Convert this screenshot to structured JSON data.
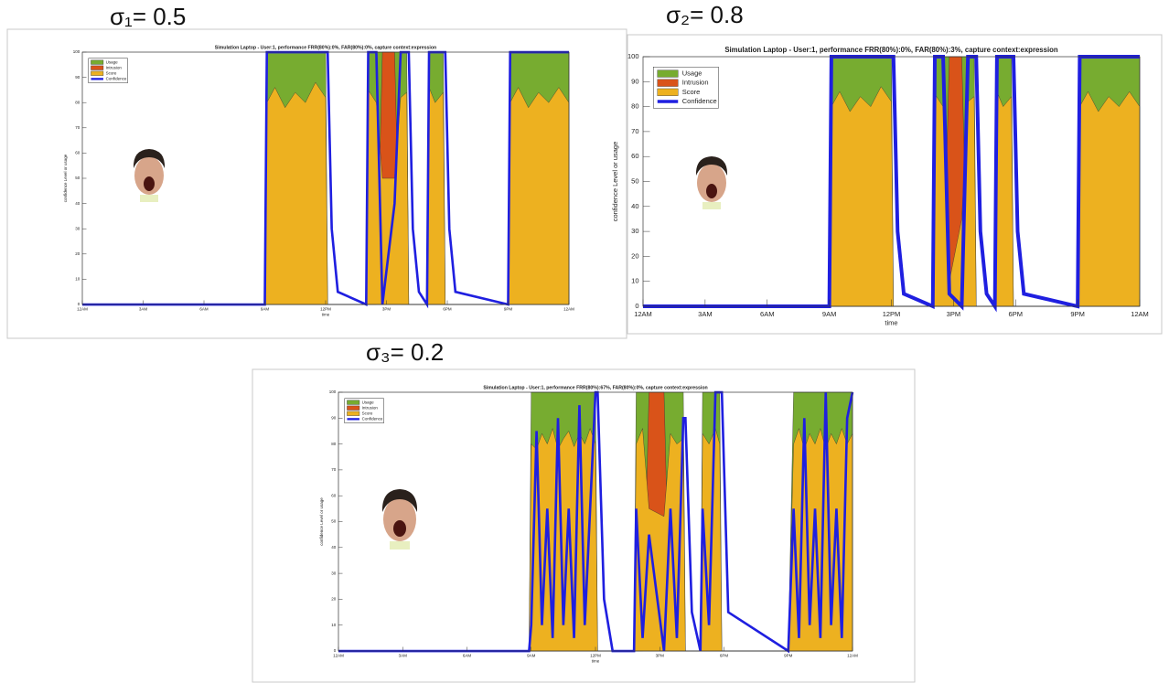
{
  "chart_data": [
    {
      "type": "area",
      "panel_label": "σ₁= 0.5",
      "title": "Simulation Laptop - User:1, performance FRR(80%):0%, FAR(80%):0%, capture context:expression",
      "xlabel": "time",
      "ylabel": "confidence Level or usage",
      "legend": "upper left",
      "xlim": [
        0,
        24
      ],
      "ylim": [
        0,
        100
      ],
      "xticks": [
        {
          "value": 0,
          "label": "12AM"
        },
        {
          "value": 3,
          "label": "3AM"
        },
        {
          "value": 6,
          "label": "6AM"
        },
        {
          "value": 9,
          "label": "9AM"
        },
        {
          "value": 12,
          "label": "12PM"
        },
        {
          "value": 15,
          "label": "3PM"
        },
        {
          "value": 18,
          "label": "6PM"
        },
        {
          "value": 21,
          "label": "9PM"
        },
        {
          "value": 24,
          "label": "12AM"
        }
      ],
      "yticks": [
        0,
        10,
        20,
        30,
        40,
        50,
        60,
        70,
        80,
        90,
        100
      ],
      "x": [
        0,
        9,
        9.1,
        9.5,
        10,
        10.5,
        11,
        11.5,
        12,
        12.1,
        12.3,
        12.6,
        14,
        14.1,
        14.5,
        14.8,
        15.4,
        15.7,
        16,
        16.1,
        16.3,
        16.6,
        17,
        17.1,
        17.4,
        17.8,
        17.9,
        18.1,
        18.4,
        21,
        21.1,
        21.5,
        22,
        22.5,
        23,
        23.5,
        24
      ],
      "series": [
        {
          "name": "Usage",
          "color": "#77ac30",
          "style": "area",
          "values": [
            0,
            0,
            100,
            100,
            100,
            100,
            100,
            100,
            100,
            0,
            0,
            0,
            0,
            100,
            100,
            100,
            100,
            100,
            100,
            0,
            0,
            0,
            0,
            100,
            100,
            100,
            0,
            0,
            0,
            0,
            100,
            100,
            100,
            100,
            100,
            100,
            100
          ]
        },
        {
          "name": "Intrusion",
          "color": "#d95319",
          "style": "area",
          "values": [
            0,
            0,
            0,
            0,
            0,
            0,
            0,
            0,
            0,
            0,
            0,
            0,
            0,
            0,
            0,
            100,
            100,
            0,
            0,
            0,
            0,
            0,
            0,
            0,
            0,
            0,
            0,
            0,
            0,
            0,
            0,
            0,
            0,
            0,
            0,
            0,
            0
          ]
        },
        {
          "name": "Score",
          "color": "#edb120",
          "style": "area",
          "values": [
            0,
            0,
            80,
            86,
            78,
            84,
            80,
            88,
            82,
            0,
            0,
            0,
            0,
            85,
            80,
            50,
            50,
            82,
            84,
            0,
            0,
            0,
            0,
            86,
            80,
            84,
            0,
            0,
            0,
            0,
            80,
            86,
            78,
            84,
            80,
            86,
            80
          ]
        },
        {
          "name": "Confidence",
          "color": "#1f1fe0",
          "style": "line",
          "values": [
            0,
            0,
            100,
            100,
            100,
            100,
            100,
            100,
            100,
            100,
            30,
            5,
            0,
            100,
            100,
            0,
            40,
            100,
            100,
            100,
            30,
            5,
            0,
            100,
            100,
            100,
            100,
            30,
            5,
            0,
            100,
            100,
            100,
            100,
            100,
            100,
            100
          ]
        }
      ]
    },
    {
      "type": "area",
      "panel_label": "σ₂= 0.8",
      "title": "Simulation Laptop - User:1, performance FRR(80%):0%, FAR(80%):3%, capture context:expression",
      "xlabel": "time",
      "ylabel": "confidence Level or usage",
      "legend": "upper left",
      "xlim": [
        0,
        24
      ],
      "ylim": [
        0,
        100
      ],
      "xticks": [
        {
          "value": 0,
          "label": "12AM"
        },
        {
          "value": 3,
          "label": "3AM"
        },
        {
          "value": 6,
          "label": "6AM"
        },
        {
          "value": 9,
          "label": "9AM"
        },
        {
          "value": 12,
          "label": "12PM"
        },
        {
          "value": 15,
          "label": "3PM"
        },
        {
          "value": 18,
          "label": "6PM"
        },
        {
          "value": 21,
          "label": "9PM"
        },
        {
          "value": 24,
          "label": "12AM"
        }
      ],
      "yticks": [
        0,
        10,
        20,
        30,
        40,
        50,
        60,
        70,
        80,
        90,
        100
      ],
      "x": [
        0,
        9,
        9.1,
        9.5,
        10,
        10.5,
        11,
        11.5,
        12,
        12.1,
        12.3,
        12.6,
        14,
        14.1,
        14.5,
        14.8,
        15.4,
        15.7,
        16,
        16.1,
        16.3,
        16.6,
        17,
        17.1,
        17.4,
        17.8,
        17.9,
        18.1,
        18.4,
        21,
        21.1,
        21.5,
        22,
        22.5,
        23,
        23.5,
        24
      ],
      "series": [
        {
          "name": "Usage",
          "color": "#77ac30",
          "style": "area",
          "values": [
            0,
            0,
            100,
            100,
            100,
            100,
            100,
            100,
            100,
            0,
            0,
            0,
            0,
            100,
            100,
            100,
            100,
            100,
            100,
            0,
            0,
            0,
            0,
            100,
            100,
            100,
            0,
            0,
            0,
            0,
            100,
            100,
            100,
            100,
            100,
            100,
            100
          ]
        },
        {
          "name": "Intrusion",
          "color": "#d95319",
          "style": "area",
          "values": [
            0,
            0,
            0,
            0,
            0,
            0,
            0,
            0,
            0,
            0,
            0,
            0,
            0,
            0,
            0,
            100,
            100,
            0,
            0,
            0,
            0,
            0,
            0,
            0,
            0,
            0,
            0,
            0,
            0,
            0,
            0,
            0,
            0,
            0,
            0,
            0,
            0
          ]
        },
        {
          "name": "Score",
          "color": "#edb120",
          "style": "area",
          "values": [
            0,
            0,
            80,
            86,
            78,
            84,
            80,
            88,
            82,
            0,
            0,
            0,
            0,
            85,
            80,
            10,
            35,
            82,
            84,
            0,
            0,
            0,
            0,
            86,
            80,
            84,
            0,
            0,
            0,
            0,
            80,
            86,
            78,
            84,
            80,
            86,
            80
          ]
        },
        {
          "name": "Confidence",
          "color": "#1f1fe0",
          "style": "line",
          "values": [
            0,
            0,
            100,
            100,
            100,
            100,
            100,
            100,
            100,
            100,
            30,
            5,
            0,
            100,
            100,
            5,
            0,
            100,
            100,
            100,
            30,
            5,
            0,
            100,
            100,
            100,
            100,
            30,
            5,
            0,
            100,
            100,
            100,
            100,
            100,
            100,
            100
          ]
        }
      ]
    },
    {
      "type": "area",
      "panel_label": "σ₃= 0.2",
      "title": "Simulation Laptop - User:1, performance FRR(80%):67%, FAR(80%):0%, capture context:expression",
      "xlabel": "time",
      "ylabel": "confidence Level or usage",
      "legend": "upper left",
      "xlim": [
        0,
        24
      ],
      "ylim": [
        0,
        100
      ],
      "xticks": [
        {
          "value": 0,
          "label": "12AM"
        },
        {
          "value": 3,
          "label": "3AM"
        },
        {
          "value": 6,
          "label": "6AM"
        },
        {
          "value": 9,
          "label": "9AM"
        },
        {
          "value": 12,
          "label": "12PM"
        },
        {
          "value": 15,
          "label": "3PM"
        },
        {
          "value": 18,
          "label": "6PM"
        },
        {
          "value": 21,
          "label": "9PM"
        },
        {
          "value": 24,
          "label": "12AM"
        }
      ],
      "yticks": [
        0,
        10,
        20,
        30,
        40,
        50,
        60,
        70,
        80,
        90,
        100
      ],
      "x": [
        0,
        8.9,
        9,
        9.25,
        9.5,
        9.75,
        10,
        10.25,
        10.5,
        10.75,
        11,
        11.25,
        11.5,
        11.75,
        12,
        12.1,
        12.4,
        12.8,
        13.8,
        13.9,
        14.2,
        14.5,
        15.2,
        15.5,
        15.8,
        16.1,
        16.2,
        16.5,
        16.9,
        17,
        17.3,
        17.6,
        17.8,
        17.9,
        18.2,
        21,
        21.25,
        21.5,
        21.75,
        22,
        22.25,
        22.5,
        22.75,
        23,
        23.25,
        23.5,
        23.75,
        24
      ],
      "series": [
        {
          "name": "Usage",
          "color": "#77ac30",
          "style": "area",
          "values": [
            0,
            0,
            100,
            100,
            100,
            100,
            100,
            100,
            100,
            100,
            100,
            100,
            100,
            100,
            100,
            0,
            0,
            0,
            0,
            100,
            100,
            100,
            100,
            100,
            100,
            100,
            0,
            0,
            0,
            100,
            100,
            100,
            100,
            0,
            0,
            0,
            100,
            100,
            100,
            100,
            100,
            100,
            100,
            100,
            100,
            100,
            100,
            100
          ]
        },
        {
          "name": "Intrusion",
          "color": "#d95319",
          "style": "area",
          "values": [
            0,
            0,
            0,
            0,
            0,
            0,
            0,
            0,
            0,
            0,
            0,
            0,
            0,
            0,
            0,
            0,
            0,
            0,
            0,
            0,
            0,
            100,
            100,
            0,
            0,
            0,
            0,
            0,
            0,
            0,
            0,
            0,
            0,
            0,
            0,
            0,
            0,
            0,
            0,
            0,
            0,
            0,
            0,
            0,
            0,
            0,
            0,
            0
          ]
        },
        {
          "name": "Score",
          "color": "#edb120",
          "style": "area",
          "values": [
            0,
            0,
            80,
            78,
            84,
            80,
            86,
            78,
            82,
            85,
            79,
            84,
            80,
            86,
            80,
            0,
            0,
            0,
            0,
            80,
            86,
            55,
            52,
            84,
            80,
            82,
            0,
            0,
            0,
            84,
            80,
            86,
            80,
            0,
            0,
            0,
            80,
            86,
            78,
            84,
            80,
            86,
            78,
            84,
            80,
            86,
            80,
            84
          ]
        },
        {
          "name": "Confidence",
          "color": "#1f1fe0",
          "style": "line",
          "values": [
            0,
            0,
            10,
            85,
            10,
            55,
            5,
            90,
            10,
            55,
            5,
            95,
            10,
            55,
            100,
            100,
            20,
            0,
            0,
            55,
            5,
            45,
            0,
            55,
            5,
            90,
            90,
            15,
            0,
            55,
            10,
            100,
            100,
            100,
            15,
            0,
            55,
            5,
            90,
            10,
            55,
            5,
            100,
            10,
            55,
            5,
            90,
            100
          ]
        }
      ]
    }
  ]
}
